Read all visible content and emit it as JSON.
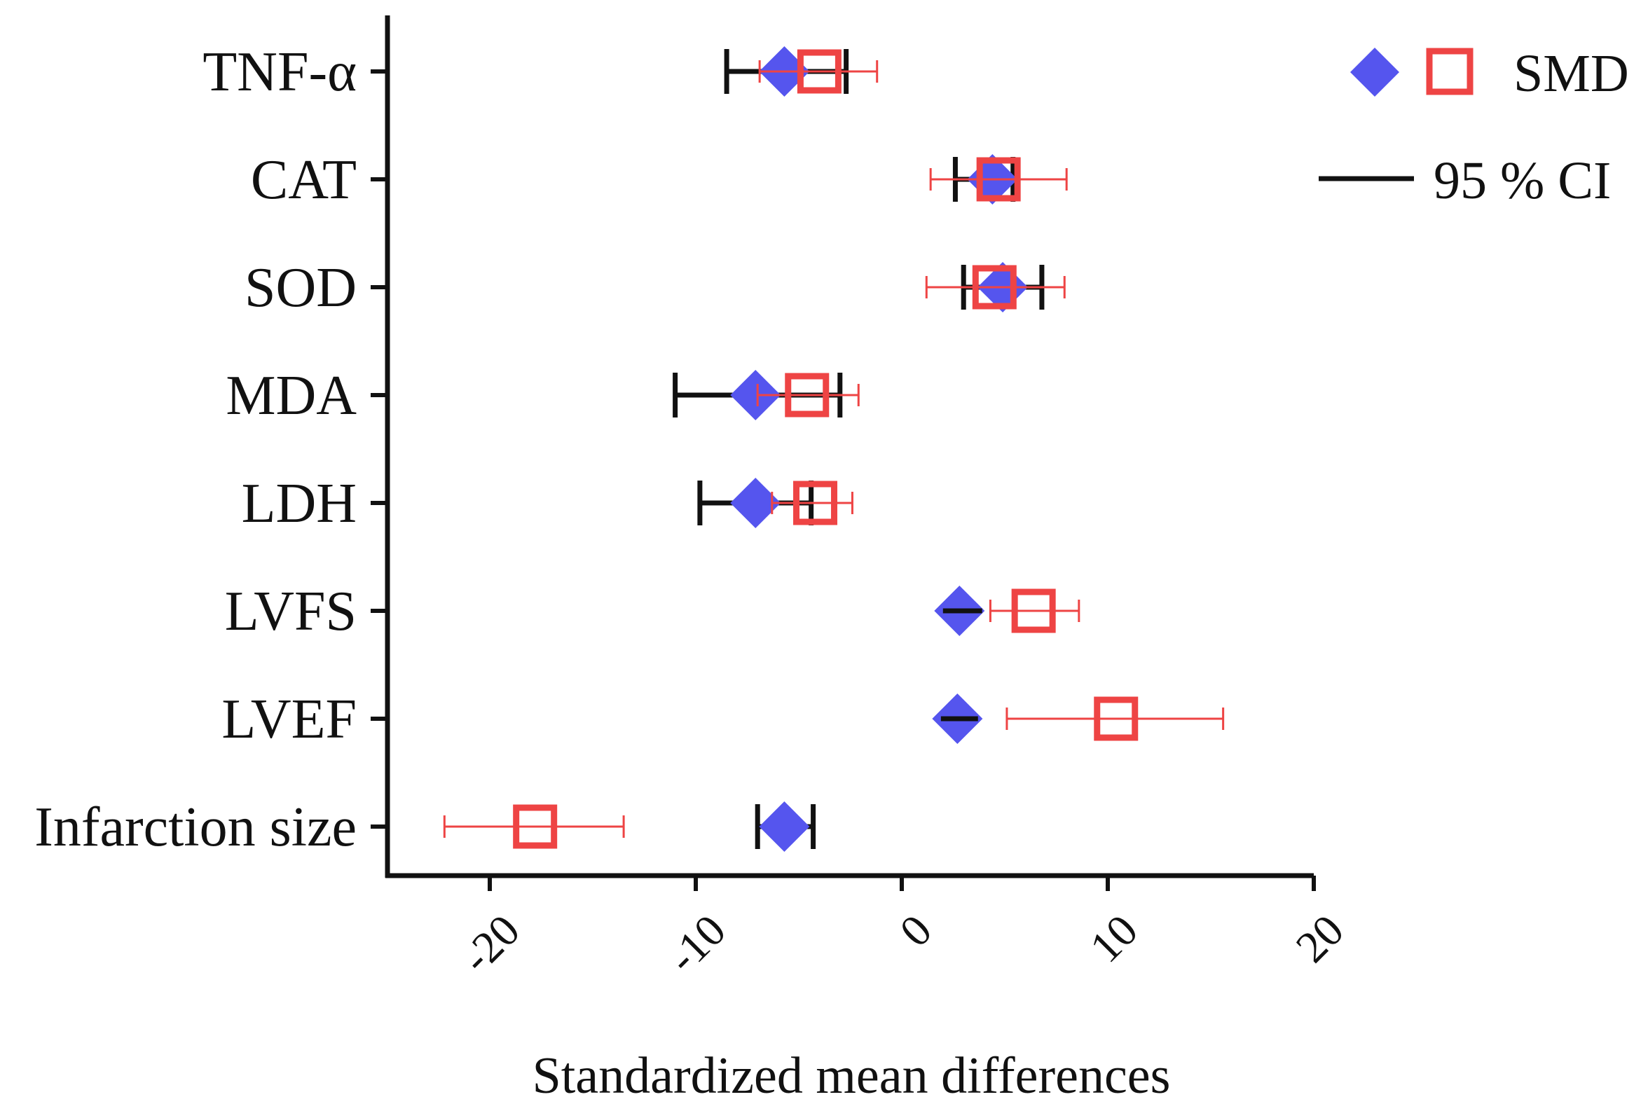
{
  "chart_data": {
    "type": "scatter",
    "subtype": "forest-plot",
    "title": "",
    "xlabel": "Standardized mean differences",
    "ylabel": "",
    "xlim": [
      -25,
      20
    ],
    "x_ticks": [
      -20,
      -10,
      0,
      10,
      20
    ],
    "x_tick_labels": [
      "-20",
      "-10",
      "0",
      "10",
      "20"
    ],
    "tick_label_rotation": -45,
    "grid": false,
    "legend_position": "top-right",
    "colors": {
      "diamond": "#5555ee",
      "square": "#ee4444",
      "ci_black": "#111111",
      "ci_red": "#ee4444"
    },
    "legend": {
      "marker_label": "SMD",
      "ci_label": "95 % CI"
    },
    "categories": [
      "TNF-α",
      "CAT",
      "SOD",
      "MDA",
      "LDH",
      "LVFS",
      "LVEF",
      "Infarction size"
    ],
    "series": [
      {
        "marker": "diamond",
        "color": "#5555ee",
        "values": [
          -5.7,
          4.4,
          4.9,
          -7.1,
          -7.1,
          2.8,
          2.7,
          -5.7
        ],
        "ci_lower": [
          -8.5,
          2.6,
          3.0,
          -11.0,
          -9.8,
          2.0,
          1.9,
          -7.0
        ],
        "ci_upper": [
          -2.7,
          5.4,
          6.8,
          -3.0,
          -4.4,
          3.9,
          3.7,
          -4.3
        ]
      },
      {
        "marker": "open-square",
        "color": "#ee4444",
        "values": [
          -4.0,
          4.7,
          4.5,
          -4.6,
          -4.2,
          6.4,
          10.4,
          -17.8
        ],
        "ci_lower": [
          -6.9,
          1.4,
          1.2,
          -7.0,
          -6.3,
          4.3,
          5.1,
          -22.2
        ],
        "ci_upper": [
          -1.2,
          8.0,
          7.9,
          -2.1,
          -2.4,
          8.6,
          15.6,
          -13.5
        ]
      }
    ]
  }
}
